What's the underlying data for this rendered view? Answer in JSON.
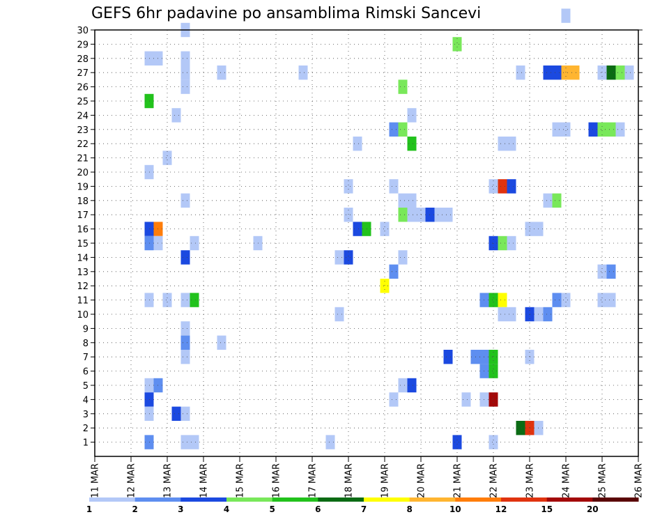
{
  "chart_data": {
    "type": "heatmap",
    "title": "GEFS 6hr padavine po ansamblima Rimski Sancevi",
    "xlabel": "",
    "ylabel": "",
    "x_axis": {
      "unit": "6-hour steps from 11 MAR 00Z",
      "range": [
        0,
        60
      ],
      "tick_labels": [
        "11 MAR",
        "12 MAR",
        "13 MAR",
        "14 MAR",
        "15 MAR",
        "16 MAR",
        "17 MAR",
        "18 MAR",
        "19 MAR",
        "20 MAR",
        "21 MAR",
        "22 MAR",
        "23 MAR",
        "24 MAR",
        "25 MAR",
        "26 MAR"
      ]
    },
    "y_axis": {
      "label_values": [
        1,
        2,
        3,
        4,
        5,
        6,
        7,
        8,
        9,
        10,
        11,
        12,
        13,
        14,
        15,
        16,
        17,
        18,
        19,
        20,
        21,
        22,
        23,
        24,
        25,
        26,
        27,
        28,
        29,
        30
      ],
      "range": [
        0,
        30
      ]
    },
    "grid": true,
    "colorbar": {
      "levels": [
        "1",
        "2",
        "3",
        "4",
        "5",
        "6",
        "7",
        "8",
        "10",
        "12",
        "15",
        "20"
      ],
      "colors": [
        "#b3c8f7",
        "#5e8ef0",
        "#1b49e0",
        "#79e85a",
        "#22c21c",
        "#0b6b14",
        "#ffff00",
        "#ffb530",
        "#ff7d0a",
        "#e0330f",
        "#a30808",
        "#5a0505"
      ]
    },
    "cells": [
      [
        10,
        30,
        0
      ],
      [
        52,
        31,
        0
      ],
      [
        6,
        28,
        0
      ],
      [
        7,
        28,
        0
      ],
      [
        10,
        28,
        0
      ],
      [
        40,
        29,
        3
      ],
      [
        10,
        27,
        0
      ],
      [
        14,
        27,
        0
      ],
      [
        23,
        27,
        0
      ],
      [
        47,
        27,
        0
      ],
      [
        50,
        27,
        2
      ],
      [
        51,
        27,
        2
      ],
      [
        52,
        27,
        7
      ],
      [
        53,
        27,
        7
      ],
      [
        56,
        27,
        0
      ],
      [
        57,
        27,
        5
      ],
      [
        58,
        27,
        3
      ],
      [
        59,
        27,
        0
      ],
      [
        10,
        26,
        0
      ],
      [
        34,
        26,
        3
      ],
      [
        6,
        25,
        4
      ],
      [
        9,
        24,
        0
      ],
      [
        35,
        24,
        0
      ],
      [
        33,
        23,
        1
      ],
      [
        34,
        23,
        3
      ],
      [
        51,
        23,
        0
      ],
      [
        52,
        23,
        0
      ],
      [
        55,
        23,
        2
      ],
      [
        56,
        23,
        3
      ],
      [
        57,
        23,
        3
      ],
      [
        58,
        23,
        0
      ],
      [
        29,
        22,
        0
      ],
      [
        35,
        22,
        4
      ],
      [
        45,
        22,
        0
      ],
      [
        46,
        22,
        0
      ],
      [
        8,
        21,
        0
      ],
      [
        6,
        20,
        0
      ],
      [
        28,
        19,
        0
      ],
      [
        33,
        19,
        0
      ],
      [
        44,
        19,
        0
      ],
      [
        45,
        19,
        9
      ],
      [
        46,
        19,
        2
      ],
      [
        34,
        18,
        0
      ],
      [
        35,
        18,
        0
      ],
      [
        10,
        18,
        0
      ],
      [
        50,
        18,
        0
      ],
      [
        51,
        18,
        3
      ],
      [
        28,
        17,
        0
      ],
      [
        34,
        17,
        3
      ],
      [
        35,
        17,
        0
      ],
      [
        36,
        17,
        0
      ],
      [
        37,
        17,
        2
      ],
      [
        38,
        17,
        0
      ],
      [
        39,
        17,
        0
      ],
      [
        6,
        16,
        2
      ],
      [
        7,
        16,
        8
      ],
      [
        29,
        16,
        2
      ],
      [
        30,
        16,
        4
      ],
      [
        32,
        16,
        0
      ],
      [
        48,
        16,
        0
      ],
      [
        49,
        16,
        0
      ],
      [
        6,
        15,
        1
      ],
      [
        7,
        15,
        0
      ],
      [
        11,
        15,
        0
      ],
      [
        18,
        15,
        0
      ],
      [
        44,
        15,
        2
      ],
      [
        45,
        15,
        3
      ],
      [
        46,
        15,
        0
      ],
      [
        10,
        14,
        2
      ],
      [
        27,
        14,
        0
      ],
      [
        28,
        14,
        2
      ],
      [
        34,
        14,
        0
      ],
      [
        33,
        13,
        1
      ],
      [
        56,
        13,
        0
      ],
      [
        57,
        13,
        1
      ],
      [
        32,
        12,
        6
      ],
      [
        8,
        11,
        0
      ],
      [
        10,
        11,
        0
      ],
      [
        11,
        11,
        4
      ],
      [
        6,
        11,
        0
      ],
      [
        43,
        11,
        1
      ],
      [
        44,
        11,
        4
      ],
      [
        45,
        11,
        6
      ],
      [
        51,
        11,
        1
      ],
      [
        52,
        11,
        0
      ],
      [
        56,
        11,
        0
      ],
      [
        57,
        11,
        0
      ],
      [
        27,
        10,
        0
      ],
      [
        45,
        10,
        0
      ],
      [
        46,
        10,
        0
      ],
      [
        48,
        10,
        2
      ],
      [
        49,
        10,
        0
      ],
      [
        50,
        10,
        1
      ],
      [
        10,
        9,
        0
      ],
      [
        10,
        8,
        1
      ],
      [
        14,
        8,
        0
      ],
      [
        10,
        7,
        0
      ],
      [
        39,
        7,
        2
      ],
      [
        42,
        7,
        1
      ],
      [
        43,
        7,
        1
      ],
      [
        44,
        7,
        4
      ],
      [
        48,
        7,
        0
      ],
      [
        43,
        6,
        1
      ],
      [
        44,
        6,
        4
      ],
      [
        6,
        5,
        0
      ],
      [
        7,
        5,
        1
      ],
      [
        34,
        5,
        0
      ],
      [
        35,
        5,
        2
      ],
      [
        6,
        4,
        2
      ],
      [
        33,
        4,
        0
      ],
      [
        41,
        4,
        0
      ],
      [
        43,
        4,
        0
      ],
      [
        44,
        4,
        10
      ],
      [
        6,
        3,
        0
      ],
      [
        9,
        3,
        2
      ],
      [
        10,
        3,
        0
      ],
      [
        47,
        2,
        5
      ],
      [
        48,
        2,
        9
      ],
      [
        49,
        2,
        0
      ],
      [
        6,
        1,
        1
      ],
      [
        10,
        1,
        0
      ],
      [
        11,
        1,
        0
      ],
      [
        26,
        1,
        0
      ],
      [
        40,
        1,
        2
      ],
      [
        44,
        1,
        0
      ]
    ]
  }
}
